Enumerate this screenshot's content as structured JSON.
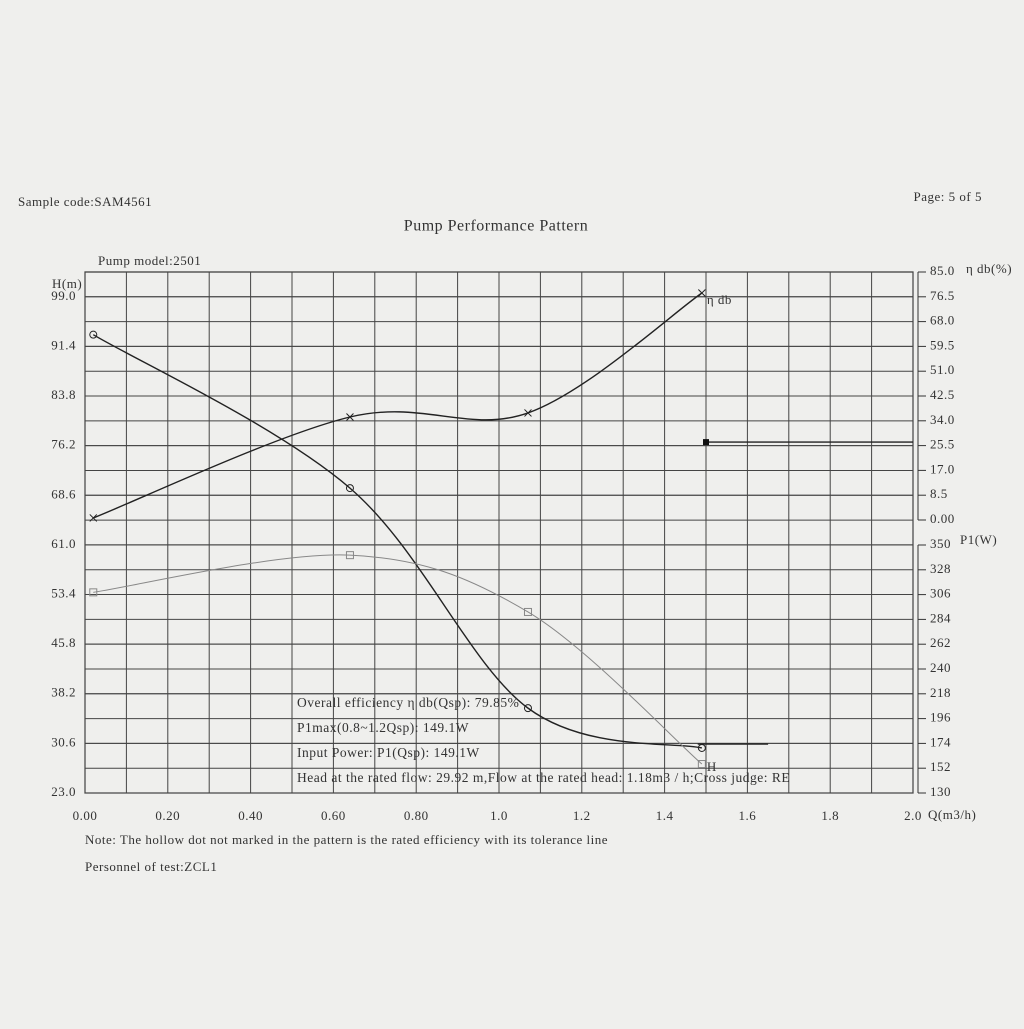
{
  "header": {
    "sample_code": "Sample code:SAM4561",
    "page": "Page: 5 of 5"
  },
  "chart_data": {
    "type": "line",
    "title": "Pump Performance Pattern",
    "subtitle": "Pump model:2501",
    "x_label": "Q(m3/h)",
    "y_label": "H(m)",
    "y2_label": "η db(%)",
    "y3_label": "P1(W)",
    "xlim": [
      0,
      2.0
    ],
    "xticks": [
      {
        "value": 0,
        "label": "0.00"
      },
      {
        "value": 0.2,
        "label": "0.20"
      },
      {
        "value": 0.4,
        "label": "0.40"
      },
      {
        "value": 0.6,
        "label": "0.60"
      },
      {
        "value": 0.8,
        "label": "0.80"
      },
      {
        "value": 1.0,
        "label": "1.0"
      },
      1.2,
      1.4,
      1.6,
      1.8,
      {
        "value": 2.0,
        "label": "2.0"
      }
    ],
    "ylim": [
      23.0,
      102.8
    ],
    "yticks": [
      {
        "value": 23.0,
        "label": "23.0"
      },
      30.6,
      38.2,
      45.8,
      53.4,
      {
        "value": 61.0,
        "label": "61.0"
      },
      68.6,
      76.2,
      83.8,
      91.4,
      {
        "value": 99.0,
        "label": "99.0"
      }
    ],
    "y2lim": [
      0,
      85
    ],
    "y2ticks": [
      {
        "value": 0,
        "label": "0.00"
      },
      8.5,
      {
        "value": 17,
        "label": "17.0"
      },
      25.5,
      {
        "value": 34,
        "label": "34.0"
      },
      42.5,
      {
        "value": 51,
        "label": "51.0"
      },
      59.5,
      {
        "value": 68,
        "label": "68.0"
      },
      76.5,
      {
        "value": 85,
        "label": "85.0"
      }
    ],
    "y3lim": [
      130,
      350
    ],
    "y3ticks": [
      130,
      152,
      174,
      196,
      218,
      240,
      262,
      284,
      306,
      328,
      350
    ],
    "grid": true,
    "series": [
      {
        "name": "H",
        "axis": "y",
        "color": "#222222",
        "marker": "circle",
        "x": [
          0.02,
          0.64,
          1.07,
          1.49
        ],
        "values": [
          93.2,
          69.7,
          36.0,
          29.9
        ]
      },
      {
        "name": "η db",
        "axis": "y2",
        "color": "#222222",
        "marker": "cross",
        "x": [
          0.02,
          0.64,
          1.07,
          1.49
        ],
        "values": [
          0.7,
          35.3,
          36.7,
          77.8
        ]
      },
      {
        "axis": "y3",
        "color": "#888888",
        "marker": "square",
        "x": [
          0.02,
          0.64,
          1.07,
          1.49
        ],
        "values": [
          308,
          341,
          290.6,
          155.7
        ]
      }
    ],
    "tolerance_lines": [
      {
        "axis": "y2",
        "x": [
          1.5,
          2.0
        ],
        "value": 26.7,
        "marker": "filled-square"
      },
      {
        "axis": "y",
        "x": [
          1.48,
          1.65
        ],
        "value": 30.5
      }
    ],
    "annotations": [
      "Overall efficiency  η db(Qsp): 79.85%",
      "P1max(0.8~1.2Qsp): 149.1W",
      "Input Power: P1(Qsp): 149.1W",
      "Head at the rated flow: 29.92 m,Flow at the rated head: 1.18m3 / h;Cross judge: RE"
    ]
  },
  "footer": {
    "note": "Note: The hollow dot not marked in the pattern is the rated efficiency with its tolerance line",
    "personnel": "Personnel of test:ZCL1"
  }
}
